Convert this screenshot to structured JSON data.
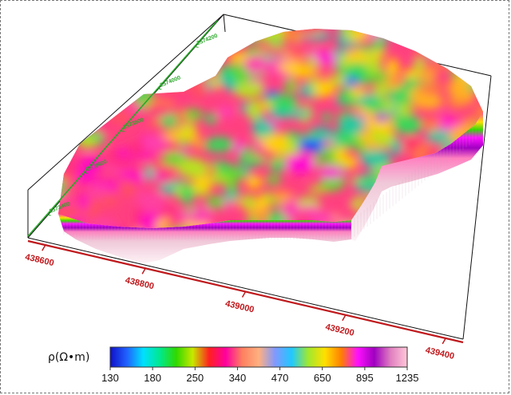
{
  "chart_data": {
    "type": "heatmap",
    "title": "",
    "x_axis": {
      "label": "",
      "tick_labels": [
        "438600",
        "438800",
        "439000",
        "439200",
        "439400"
      ],
      "color": "#c0181c"
    },
    "y_axis": {
      "label": "",
      "tick_labels": [
        "2573400",
        "2573600",
        "2573800",
        "2574000",
        "2574200"
      ],
      "color": "#2aa82a"
    },
    "colorbar": {
      "title": "ρ(Ω•m)",
      "tick_labels": [
        "130",
        "180",
        "250",
        "340",
        "470",
        "650",
        "895",
        "1235"
      ],
      "range": [
        130,
        1235
      ],
      "scale": "log",
      "colors": [
        "#1010c8",
        "#2060ff",
        "#00e0ff",
        "#00e890",
        "#30d800",
        "#c8e800",
        "#ff2020",
        "#ff00a0",
        "#ff8060",
        "#ffb080",
        "#8098ff",
        "#20c8ff",
        "#a0e830",
        "#ffe000",
        "#ff8000",
        "#ff10ff",
        "#a000c0",
        "#e080c0",
        "#ffc8d8"
      ]
    },
    "grid": false,
    "legend": "bottom"
  }
}
